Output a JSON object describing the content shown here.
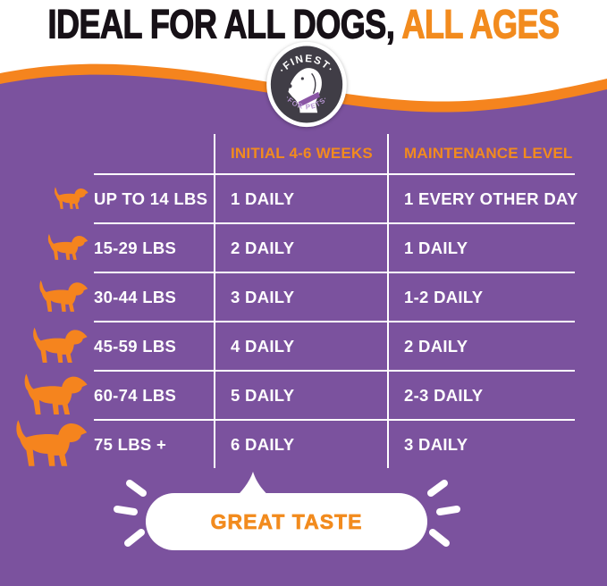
{
  "header": {
    "title": "IDEAL FOR ALL DOGS,",
    "title_accent": "ALL AGES"
  },
  "logo": {
    "arc_top": "·FINEST·",
    "arc_bottom": "·FOR PETS·"
  },
  "table": {
    "columns": [
      "INITIAL 4-6 WEEKS",
      "MAINTENANCE LEVEL"
    ],
    "rows": [
      {
        "weight": "UP TO 14 LBS",
        "initial": "1 DAILY",
        "maintenance": "1 EVERY OTHER DAY"
      },
      {
        "weight": "15-29 LBS",
        "initial": "2 DAILY",
        "maintenance": "1 DAILY"
      },
      {
        "weight": "30-44 LBS",
        "initial": "3 DAILY",
        "maintenance": "1-2 DAILY"
      },
      {
        "weight": "45-59 LBS",
        "initial": "4 DAILY",
        "maintenance": "2 DAILY"
      },
      {
        "weight": "60-74 LBS",
        "initial": "5 DAILY",
        "maintenance": "2-3 DAILY"
      },
      {
        "weight": "75 LBS +",
        "initial": "6 DAILY",
        "maintenance": "3 DAILY"
      }
    ]
  },
  "bubble": {
    "label": "GREAT TASTE"
  },
  "colors": {
    "background": "#ffffff",
    "panel_purple": "#7b529e",
    "accent_orange": "#f28b1e",
    "wave_orange": "#f5841e",
    "headline_dark": "#171117",
    "table_text": "#ffffff",
    "logo_circle": "#403d46",
    "logo_collar": "#8a56a5",
    "logo_bottom_text": "#b493cf"
  }
}
